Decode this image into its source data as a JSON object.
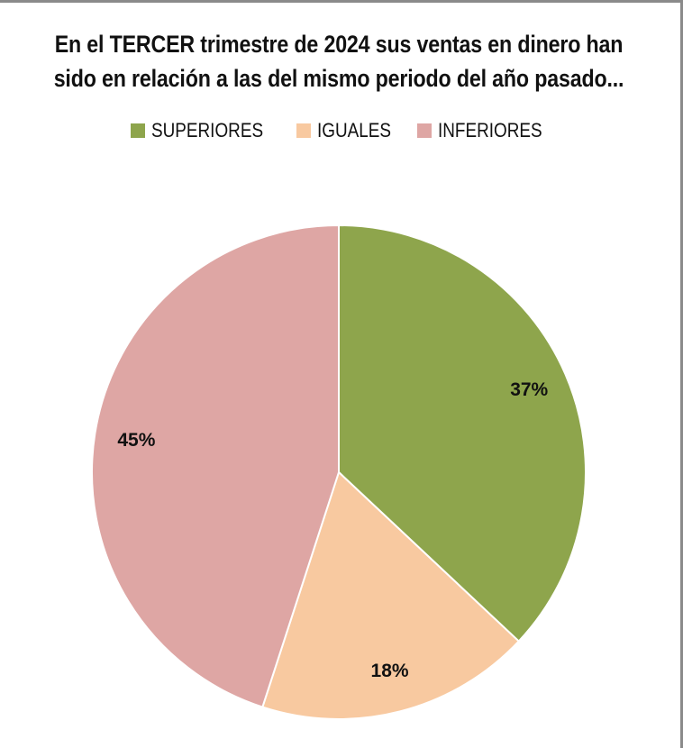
{
  "chart_data": {
    "type": "pie",
    "title": "En el  TERCER trimestre de 2024 sus ventas en dinero han sido en relación a las del mismo periodo del año pasado...",
    "title_lines": [
      "En el  TERCER trimestre de 2024 sus ventas en dinero han",
      "sido en relación a las del mismo periodo del año pasado..."
    ],
    "legend_position": "top",
    "slices": [
      {
        "label": "SUPERIORES",
        "value": 37,
        "display": "37%",
        "color": "#8ea54c"
      },
      {
        "label": "IGUALES",
        "value": 18,
        "display": "18%",
        "color": "#f8c9a0"
      },
      {
        "label": "INFERIORES",
        "value": 45,
        "display": "45%",
        "color": "#dea6a4"
      }
    ]
  }
}
